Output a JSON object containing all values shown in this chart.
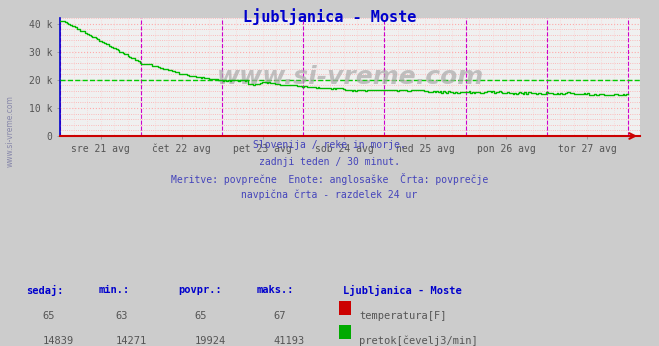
{
  "title": "Ljubljanica - Moste",
  "title_color": "#0000cc",
  "bg_color": "#cccccc",
  "plot_bg_color": "#f0f0f0",
  "grid_h_color": "#ffaaaa",
  "grid_v_color": "#ffcccc",
  "vline_color": "#cc00cc",
  "axis_bottom_color": "#cc0000",
  "axis_left_color": "#0000cc",
  "x_labels": [
    "sre 21 avg",
    "čet 22 avg",
    "pet 23 avg",
    "sob 24 avg",
    "ned 25 avg",
    "pon 26 avg",
    "tor 27 avg"
  ],
  "y_ticks": [
    0,
    10000,
    20000,
    30000,
    40000
  ],
  "y_tick_labels": [
    "0",
    "10 k",
    "20 k",
    "30 k",
    "40 k"
  ],
  "ylim": [
    0,
    42000
  ],
  "avg_flow": 19924,
  "avg_line_color": "#00cc00",
  "flow_line_color": "#00bb00",
  "temp_line_color": "#cc0000",
  "temp_value": 65,
  "watermark_text": "www.si-vreme.com",
  "watermark_color": "#aaaaaa",
  "subtitle_lines": [
    "Slovenija / reke in morje.",
    "zadnji teden / 30 minut.",
    "Meritve: povprečne  Enote: anglosaške  Črta: povprečje",
    "navpična črta - razdelek 24 ur"
  ],
  "subtitle_color": "#4444bb",
  "table_header_color": "#0000cc",
  "table_value_color": "#555555",
  "temp_box_color": "#cc0000",
  "flow_box_color": "#00aa00",
  "left_label_color": "#5555aa",
  "tick_label_color": "#555555"
}
